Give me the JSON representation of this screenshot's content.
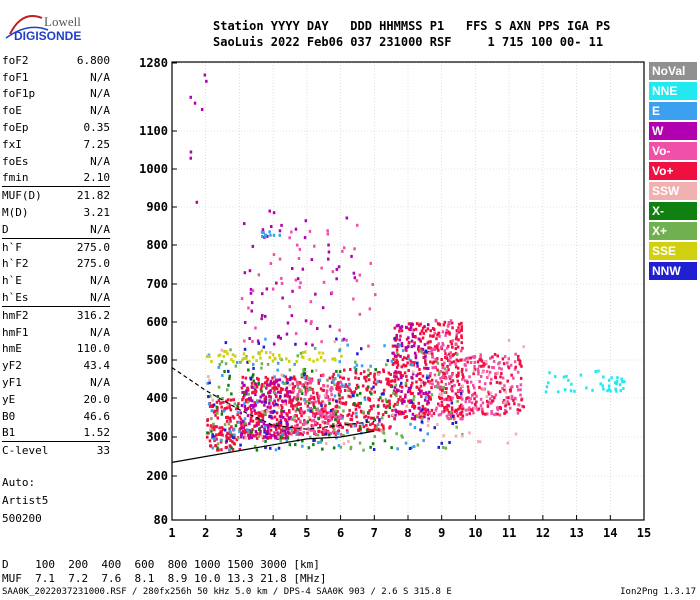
{
  "logo": {
    "line1": "Lowell",
    "line2": "DIGISONDE"
  },
  "header": {
    "row1": "Station YYYY DAY   DDD HHMMSS P1   FFS S AXN PPS IGA PS",
    "row2": "SaoLuis 2022 Feb06 037 231000 RSF     1 715 100 00- 11"
  },
  "params": [
    {
      "name": "foF2",
      "value": "6.800"
    },
    {
      "name": "foF1",
      "value": "N/A"
    },
    {
      "name": "foF1p",
      "value": "N/A"
    },
    {
      "name": "foE",
      "value": "N/A"
    },
    {
      "name": "foEp",
      "value": "0.35"
    },
    {
      "name": "fxI",
      "value": "7.25"
    },
    {
      "name": "foEs",
      "value": "N/A"
    },
    {
      "name": "fmin",
      "value": "2.10"
    },
    {
      "name": "MUF(D)",
      "value": "21.82"
    },
    {
      "name": "M(D)",
      "value": "3.21"
    },
    {
      "name": "D",
      "value": "N/A"
    },
    {
      "name": "h`F",
      "value": "275.0"
    },
    {
      "name": "h`F2",
      "value": "275.0"
    },
    {
      "name": "h`E",
      "value": "N/A"
    },
    {
      "name": "h`Es",
      "value": "N/A"
    },
    {
      "name": "hmF2",
      "value": "316.2"
    },
    {
      "name": "hmF1",
      "value": "N/A"
    },
    {
      "name": "hmE",
      "value": "110.0"
    },
    {
      "name": "yF2",
      "value": "43.4"
    },
    {
      "name": "yF1",
      "value": "N/A"
    },
    {
      "name": "yE",
      "value": "20.0"
    },
    {
      "name": "B0",
      "value": "46.6"
    },
    {
      "name": "B1",
      "value": "1.52"
    },
    {
      "name": "C-level",
      "value": "33"
    }
  ],
  "extra": {
    "auto": "Auto:",
    "artist": "Artist5",
    "version": "500200"
  },
  "legend": [
    {
      "label": "NoVal",
      "color": "#909090"
    },
    {
      "label": "NNE",
      "color": "#22e8f0"
    },
    {
      "label": "E",
      "color": "#3ca0f0"
    },
    {
      "label": "W",
      "color": "#b000b0"
    },
    {
      "label": "Vo-",
      "color": "#f050a8"
    },
    {
      "label": "Vo+",
      "color": "#f01040"
    },
    {
      "label": "SSW",
      "color": "#f0b0b0"
    },
    {
      "label": "X-",
      "color": "#108010"
    },
    {
      "label": "X+",
      "color": "#70b050"
    },
    {
      "label": "SSE",
      "color": "#d0d010"
    },
    {
      "label": "NNW",
      "color": "#2020d0"
    }
  ],
  "muf_table": {
    "d_label": "D",
    "d_values": [
      "100",
      "200",
      "400",
      "600",
      "800",
      "1000",
      "1500",
      "3000"
    ],
    "d_unit": "[km]",
    "muf_label": "MUF",
    "muf_values": [
      "7.1",
      "7.2",
      "7.6",
      "8.1",
      "8.9",
      "10.0",
      "13.3",
      "21.8"
    ],
    "muf_unit": "[MHz]"
  },
  "footer": {
    "left": "SAA0K_2022037231000.RSF / 280fx256h 50 kHz 5.0 km / DPS-4 SAA0K 903 / 2.6 S 315.8 E",
    "right": "Ion2Png 1.3.17"
  },
  "chart_data": {
    "type": "scatter",
    "title": "",
    "xlabel": "",
    "ylabel": "",
    "xlim": [
      1,
      15
    ],
    "ylim": [
      80,
      1280
    ],
    "x_ticks": [
      "1",
      "2",
      "3",
      "4",
      "5",
      "6",
      "7",
      "8",
      "9",
      "10",
      "11",
      "12",
      "13",
      "14",
      "15"
    ],
    "y_ticks": [
      "80",
      "200",
      "300",
      "400",
      "500",
      "600",
      "700",
      "800",
      "900",
      "1000",
      "1100",
      "1280"
    ],
    "y_tick_values": [
      80,
      200,
      300,
      400,
      500,
      600,
      700,
      800,
      900,
      1000,
      1100,
      1280
    ],
    "grid": true,
    "legend_position": "right",
    "echo_clusters": [
      {
        "x": [
          2.0,
          3.0
        ],
        "y": [
          270,
          400
        ],
        "color": "#f01040",
        "count": 120
      },
      {
        "x": [
          3.0,
          4.5
        ],
        "y": [
          300,
          460
        ],
        "color": "#f01040",
        "count": 220
      },
      {
        "x": [
          3.0,
          4.5
        ],
        "y": [
          300,
          460
        ],
        "color": "#b000b0",
        "count": 120
      },
      {
        "x": [
          4.5,
          6.0
        ],
        "y": [
          310,
          470
        ],
        "color": "#f01040",
        "count": 200
      },
      {
        "x": [
          4.5,
          6.0
        ],
        "y": [
          310,
          470
        ],
        "color": "#f050a8",
        "count": 120
      },
      {
        "x": [
          6.0,
          7.5
        ],
        "y": [
          320,
          480
        ],
        "color": "#f01040",
        "count": 160
      },
      {
        "x": [
          7.5,
          8.6
        ],
        "y": [
          350,
          600
        ],
        "color": "#f01040",
        "count": 200
      },
      {
        "x": [
          7.5,
          8.6
        ],
        "y": [
          350,
          600
        ],
        "color": "#b000b0",
        "count": 80
      },
      {
        "x": [
          8.6,
          9.6
        ],
        "y": [
          350,
          610
        ],
        "color": "#f01040",
        "count": 180
      },
      {
        "x": [
          8.6,
          9.6
        ],
        "y": [
          350,
          610
        ],
        "color": "#f050a8",
        "count": 90
      },
      {
        "x": [
          9.6,
          11.4
        ],
        "y": [
          360,
          520
        ],
        "color": "#f050a8",
        "count": 130
      },
      {
        "x": [
          9.6,
          11.4
        ],
        "y": [
          360,
          520
        ],
        "color": "#f01040",
        "count": 80
      },
      {
        "x": [
          2.0,
          7.5
        ],
        "y": [
          270,
          480
        ],
        "color": "#108010",
        "count": 90
      },
      {
        "x": [
          2.0,
          9.6
        ],
        "y": [
          270,
          540
        ],
        "color": "#70b050",
        "count": 120
      },
      {
        "x": [
          2.0,
          8.6
        ],
        "y": [
          270,
          560
        ],
        "color": "#3ca0f0",
        "count": 90
      },
      {
        "x": [
          2.0,
          9.6
        ],
        "y": [
          270,
          560
        ],
        "color": "#2020d0",
        "count": 70
      },
      {
        "x": [
          2.0,
          11.4
        ],
        "y": [
          280,
          560
        ],
        "color": "#f0b0b0",
        "count": 60
      },
      {
        "x": [
          2.0,
          6.0
        ],
        "y": [
          500,
          530
        ],
        "color": "#d0d010",
        "count": 50
      },
      {
        "x": [
          3.0,
          6.5
        ],
        "y": [
          540,
          900
        ],
        "color": "#b000b0",
        "count": 60
      },
      {
        "x": [
          3.0,
          7.0
        ],
        "y": [
          540,
          860
        ],
        "color": "#f050a8",
        "count": 50
      },
      {
        "x": [
          12.0,
          14.5
        ],
        "y": [
          420,
          480
        ],
        "color": "#22e8f0",
        "count": 40
      },
      {
        "x": [
          1.5,
          2.0
        ],
        "y": [
          900,
          1280
        ],
        "color": "#b000b0",
        "count": 8
      },
      {
        "x": [
          3.6,
          4.2
        ],
        "y": [
          825,
          840
        ],
        "color": "#3ca0f0",
        "count": 10
      }
    ],
    "trace_lines": [
      {
        "name": "virtual-height-trace",
        "x": [
          1.0,
          2.0,
          3.0,
          4.0,
          5.0,
          6.0,
          7.0
        ],
        "y": [
          235,
          250,
          265,
          280,
          295,
          300,
          315
        ],
        "color": "#000000"
      },
      {
        "name": "upper-trace",
        "x": [
          1.0,
          2.0,
          3.0,
          4.0,
          5.0,
          6.0,
          7.0
        ],
        "y": [
          480,
          420,
          370,
          330,
          320,
          330,
          340
        ],
        "color": "#000000"
      }
    ]
  }
}
